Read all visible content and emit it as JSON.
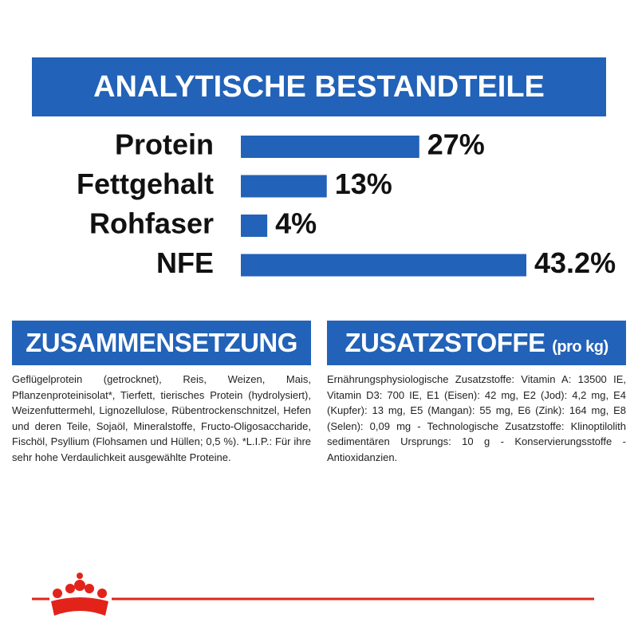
{
  "chart_data": {
    "type": "bar",
    "orientation": "horizontal",
    "title": "ANALYTISCHE BESTANDTEILE",
    "categories": [
      "Protein",
      "Fettgehalt",
      "Rohfaser",
      "NFE"
    ],
    "values": [
      27,
      13,
      4,
      43.2
    ],
    "value_labels": [
      "27%",
      "13%",
      "4%",
      "43.2%"
    ],
    "color": "#2262b8"
  },
  "composition": {
    "title": "ZUSAMMENSETZUNG",
    "text": "Geflügelprotein (getrocknet), Reis, Weizen, Mais, Pflanzenproteinisolat*, Tierfett, tierisches Protein (hydrolysiert), Weizenfuttermehl, Lignozellulose, Rübentrockenschnitzel, Hefen und deren Teile, Sojaöl, Mineralstoffe, Fructo-Oligosaccharide, Fischöl, Psyllium (Flohsamen und Hüllen; 0,5 %). *L.I.P.: Für ihre sehr hohe Verdaulichkeit ausgewählte Proteine."
  },
  "additives": {
    "title": "ZUSATZSTOFFE",
    "unit": "(pro kg)",
    "text": "Ernährungsphysiologische Zusatzstoffe: Vitamin A: 13500 IE, Vitamin D3: 700 IE, E1 (Eisen): 42 mg, E2 (Jod): 4,2 mg, E4 (Kupfer): 13 mg, E5 (Mangan): 55 mg, E6 (Zink): 164 mg, E8 (Selen): 0,09 mg - Technologische Zusatzstoffe: Klinoptilolith sedimentären Ursprungs: 10 g - Konservierungsstoffe - Antioxidanzien."
  }
}
